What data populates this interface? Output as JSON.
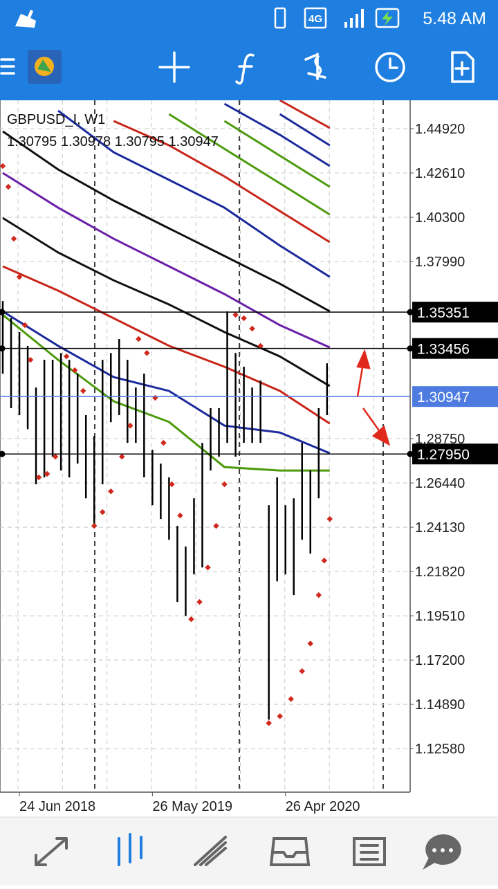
{
  "status_bar": {
    "network": "4G",
    "time": "5.48 AM"
  },
  "chart_data": {
    "type": "bars",
    "title": "GBPUSD_I, W1",
    "subtitle": "1.30795 1.30978 1.30795 1.30947",
    "color": "#000000",
    "grid": true,
    "xlim": [
      -1,
      147
    ],
    "ylim": [
      1.1031,
      1.464
    ],
    "yticks": [
      {
        "value": 1.4492,
        "label": "1.44920"
      },
      {
        "value": 1.4261,
        "label": "1.42610"
      },
      {
        "value": 1.403,
        "label": "1.40300"
      },
      {
        "value": 1.3799,
        "label": "1.37990"
      },
      {
        "value": 1.2875,
        "label": "1.28750"
      },
      {
        "value": 1.2644,
        "label": "1.26440"
      },
      {
        "value": 1.2413,
        "label": "1.24130"
      },
      {
        "value": 1.2182,
        "label": "1.21820"
      },
      {
        "value": 1.1951,
        "label": "1.19510"
      },
      {
        "value": 1.172,
        "label": "1.17200"
      },
      {
        "value": 1.1489,
        "label": "1.14890"
      },
      {
        "value": 1.1258,
        "label": "1.12580"
      }
    ],
    "xticks": [
      {
        "value": 6,
        "label": "24 Jun 2018"
      },
      {
        "value": 54,
        "label": "26 May 2019"
      },
      {
        "value": 102,
        "label": "26 Apr 2020"
      }
    ],
    "x": [
      0,
      3,
      6,
      9,
      12,
      15,
      18,
      21,
      24,
      27,
      30,
      33,
      36,
      39,
      42,
      45,
      48,
      51,
      54,
      57,
      60,
      63,
      66,
      69,
      72,
      75,
      78,
      81,
      84,
      87,
      90,
      93,
      96,
      99,
      102,
      105,
      108,
      111,
      114,
      117
    ],
    "high": [
      1.3593,
      1.3503,
      1.3431,
      1.3359,
      1.3142,
      1.3286,
      1.3286,
      1.3322,
      1.3286,
      1.3214,
      1.2998,
      1.2889,
      1.3286,
      1.3322,
      1.3395,
      1.3286,
      1.3142,
      1.3214,
      1.2817,
      1.2745,
      1.2673,
      1.242,
      1.2312,
      1.2564,
      1.2853,
      1.3034,
      1.3034,
      1.3539,
      1.3322,
      1.325,
      1.3142,
      1.3178,
      1.2528,
      1.2673,
      1.2528,
      1.2564,
      1.2853,
      1.2709,
      1.3034,
      1.3268
    ],
    "low": [
      1.3214,
      1.3034,
      1.2998,
      1.2925,
      1.2637,
      1.2673,
      1.2781,
      1.2709,
      1.2673,
      1.2745,
      1.2564,
      1.242,
      1.2637,
      1.2961,
      1.2998,
      1.2853,
      1.2853,
      1.2673,
      1.2528,
      1.2456,
      1.2348,
      1.2023,
      1.1951,
      1.2167,
      1.2203,
      1.2709,
      1.2781,
      1.2853,
      1.2781,
      1.2853,
      1.2853,
      1.2853,
      1.1409,
      1.2131,
      1.2167,
      1.2059,
      1.2348,
      1.2275,
      1.2564,
      1.2998
    ],
    "levels": [
      1.35351,
      1.33456,
      {
        "value": 1.2795,
        "label": "1.27950"
      }
    ],
    "level_color": "#000000",
    "last_price": 1.30947,
    "last_color": "#4d7be0",
    "line_x": [
      0,
      20,
      40,
      60,
      80,
      100,
      118
    ],
    "lines": [
      {
        "color": "#4c9a0c",
        "values": [
          1.3521,
          1.3286,
          1.307,
          1.2962,
          1.2727,
          1.2709,
          1.2709
        ]
      },
      {
        "color": "#1b2a9c",
        "values": [
          1.3539,
          1.3359,
          1.3196,
          1.3124,
          1.2943,
          1.2907,
          1.2799
        ]
      },
      {
        "color": "#c8261a",
        "values": [
          1.3774,
          1.3647,
          1.3503,
          1.3359,
          1.325,
          1.3124,
          1.2954
        ]
      },
      {
        "color": "#111111",
        "values": [
          1.4026,
          1.3846,
          1.3701,
          1.3575,
          1.3431,
          1.3304,
          1.3149
        ]
      },
      {
        "color": "#6a1fa8",
        "values": [
          1.4261,
          1.408,
          1.3918,
          1.3774,
          1.3629,
          1.3467,
          1.3351
        ]
      },
      {
        "color": "#111111",
        "values": [
          1.4478,
          1.4279,
          1.4117,
          1.3972,
          1.3828,
          1.3683,
          1.3539
        ]
      },
      {
        "color": "#1b2a9c",
        "values": [
          null,
          1.4586,
          1.4369,
          1.4225,
          1.408,
          1.3882,
          1.3719
        ]
      },
      {
        "color": "#c8261a",
        "values": [
          null,
          null,
          1.4532,
          1.4405,
          1.4243,
          1.4062,
          1.39
        ]
      },
      {
        "color": "#4c9a0c",
        "values": [
          null,
          null,
          null,
          1.4568,
          1.4387,
          1.4207,
          1.4044
        ]
      },
      {
        "color": "#4c9a0c",
        "values": [
          null,
          null,
          null,
          null,
          1.4532,
          1.4351,
          1.4189
        ]
      },
      {
        "color": "#1b2a9c",
        "values": [
          null,
          null,
          null,
          null,
          1.4622,
          1.446,
          1.4297
        ]
      },
      {
        "color": "#1b2a9c",
        "values": [
          null,
          null,
          null,
          null,
          null,
          1.4568,
          1.4405
        ]
      },
      {
        "color": "#c8261a",
        "values": [
          null,
          null,
          null,
          null,
          null,
          1.464,
          1.4496
        ]
      }
    ],
    "sar": {
      "color": "#d0281c",
      "x": [
        0,
        2,
        4,
        6,
        8,
        10,
        13,
        16,
        19,
        23,
        26,
        29,
        33,
        36,
        39,
        43,
        46,
        49,
        52,
        55,
        58,
        61,
        64,
        68,
        71,
        74,
        77,
        80,
        84,
        87,
        90,
        93,
        96,
        100,
        104,
        108,
        111,
        114,
        116,
        118
      ],
      "values": [
        1.4297,
        1.4189,
        1.3918,
        1.3719,
        1.3467,
        1.3286,
        1.2673,
        1.2691,
        1.2781,
        1.3304,
        1.3232,
        1.3124,
        1.242,
        1.2492,
        1.26,
        1.2781,
        1.2943,
        1.3395,
        1.3322,
        1.3088,
        1.2853,
        1.2637,
        1.2474,
        1.1933,
        1.2023,
        1.2203,
        1.242,
        1.2637,
        1.3521,
        1.3503,
        1.3449,
        1.3359,
        1.1391,
        1.1427,
        1.1517,
        1.1662,
        1.1806,
        1.2059,
        1.2239,
        1.2456
      ]
    }
  }
}
